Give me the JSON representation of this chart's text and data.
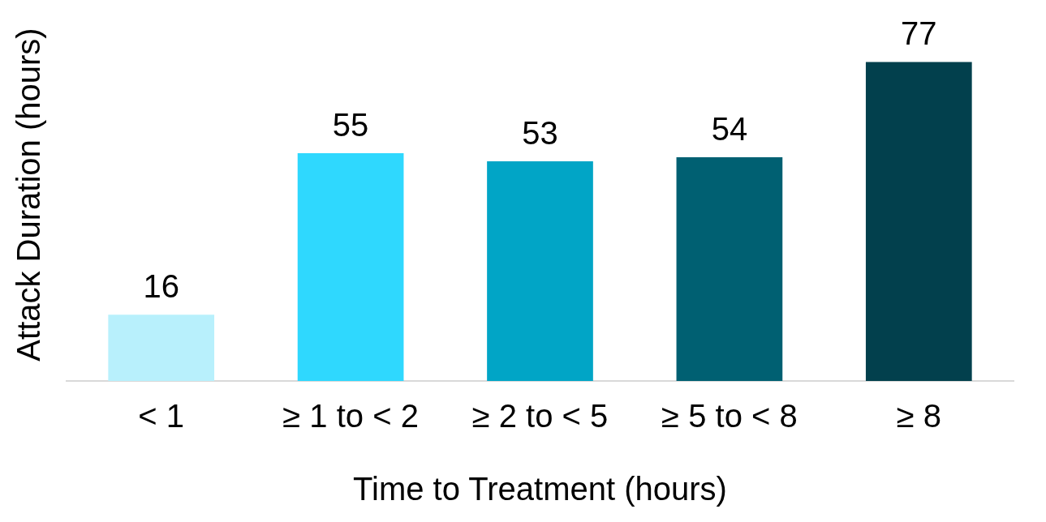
{
  "chart_data": {
    "type": "bar",
    "xlabel": "Time to Treatment (hours)",
    "ylabel": "Attack Duration (hours)",
    "categories": [
      "< 1",
      "≥ 1 to < 2",
      "≥ 2 to < 5",
      "≥ 5 to < 8",
      "≥ 8"
    ],
    "values": [
      16,
      55,
      53,
      54,
      77
    ],
    "colors": [
      "#b8f0fc",
      "#2fd8fe",
      "#01a5c6",
      "#006072",
      "#02404d"
    ],
    "data_labels": true,
    "grid": false,
    "legend": false,
    "tick_labels": "x"
  }
}
